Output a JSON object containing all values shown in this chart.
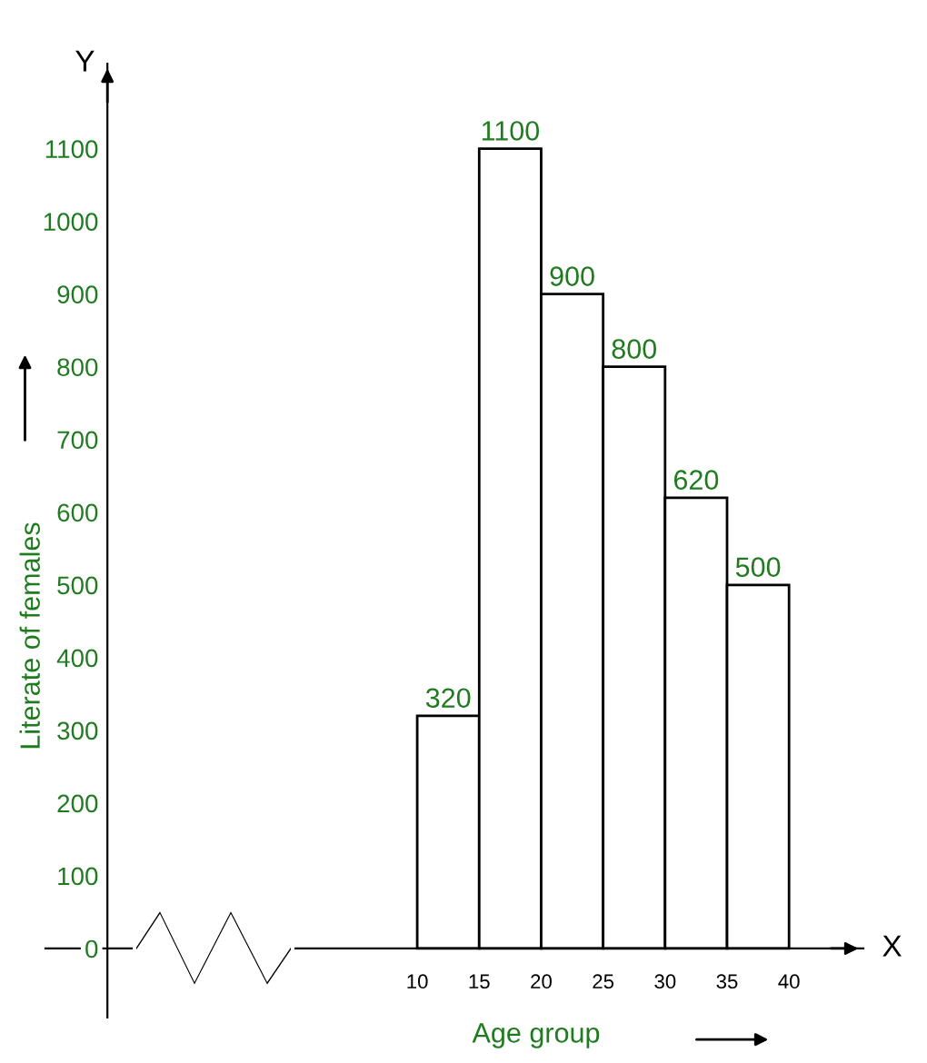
{
  "chart_data": {
    "type": "histogram",
    "bins": [
      10,
      15,
      20,
      25,
      30,
      35,
      40
    ],
    "values": [
      320,
      1100,
      900,
      800,
      620,
      500
    ],
    "color": "#ffffff",
    "xlabel": "Age group",
    "ylabel": "Literate of females",
    "annotations": [
      "Y",
      "X"
    ],
    "xlim": [
      -20,
      46
    ],
    "ylim": [
      -95,
      1217
    ],
    "xticks": [
      10,
      15,
      20,
      25,
      30,
      35,
      40
    ],
    "yticks": [
      0,
      100,
      200,
      300,
      400,
      500,
      600,
      700,
      800,
      900,
      1000,
      1100
    ],
    "data_labels": true,
    "grid": false,
    "legend": false
  }
}
